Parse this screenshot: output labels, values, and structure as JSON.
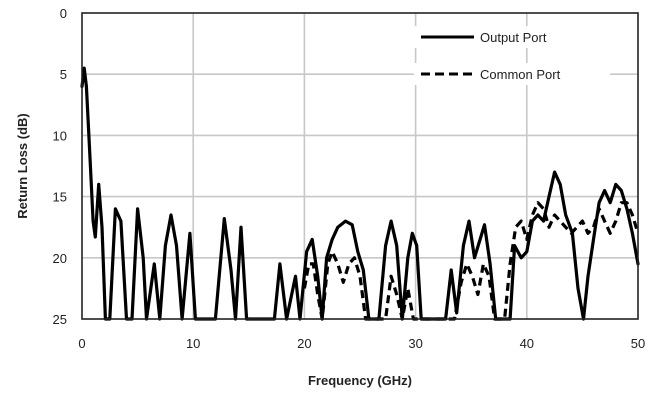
{
  "chart_data": {
    "type": "line",
    "title": "",
    "xlabel": "Frequency (GHz)",
    "ylabel": "Return Loss (dB)",
    "xlim": [
      0,
      50
    ],
    "ylim": [
      0,
      25
    ],
    "y_inverted": true,
    "x_ticks": [
      0,
      10,
      20,
      30,
      40,
      50
    ],
    "x_tick_labels": [
      "0",
      "10",
      "20",
      "30",
      "40",
      "50"
    ],
    "y_ticks": [
      0,
      5,
      10,
      15,
      20,
      25
    ],
    "y_tick_labels": [
      "0",
      "5",
      "10",
      "15",
      "20",
      "25"
    ],
    "grid": true,
    "legend_position": "top-right",
    "series": [
      {
        "name": "Output Port",
        "style": "solid",
        "color": "#000000",
        "points": [
          [
            0.0,
            6.0
          ],
          [
            0.2,
            4.5
          ],
          [
            0.4,
            6.0
          ],
          [
            0.7,
            11.5
          ],
          [
            1.0,
            17.0
          ],
          [
            1.2,
            18.3
          ],
          [
            1.5,
            14.0
          ],
          [
            1.8,
            17.5
          ],
          [
            2.1,
            25.0
          ],
          [
            2.5,
            25.0
          ],
          [
            3.0,
            16.0
          ],
          [
            3.5,
            17.0
          ],
          [
            4.0,
            25.0
          ],
          [
            4.5,
            25.0
          ],
          [
            5.0,
            16.0
          ],
          [
            5.5,
            20.0
          ],
          [
            5.8,
            25.0
          ],
          [
            6.5,
            20.5
          ],
          [
            7.0,
            25.0
          ],
          [
            7.5,
            19.0
          ],
          [
            8.0,
            16.5
          ],
          [
            8.5,
            19.0
          ],
          [
            9.0,
            25.0
          ],
          [
            9.7,
            18.0
          ],
          [
            10.2,
            25.0
          ],
          [
            12.0,
            25.0
          ],
          [
            12.8,
            16.8
          ],
          [
            13.4,
            21.0
          ],
          [
            13.8,
            25.0
          ],
          [
            14.3,
            17.5
          ],
          [
            14.8,
            25.0
          ],
          [
            17.3,
            25.0
          ],
          [
            17.8,
            20.5
          ],
          [
            18.4,
            25.0
          ],
          [
            19.2,
            21.5
          ],
          [
            19.6,
            25.0
          ],
          [
            20.2,
            19.5
          ],
          [
            20.7,
            18.5
          ],
          [
            21.2,
            21.5
          ],
          [
            21.6,
            25.0
          ],
          [
            22.0,
            20.0
          ],
          [
            22.5,
            18.5
          ],
          [
            23.0,
            17.5
          ],
          [
            23.7,
            17.0
          ],
          [
            24.3,
            17.3
          ],
          [
            24.8,
            19.5
          ],
          [
            25.3,
            21.0
          ],
          [
            25.8,
            25.0
          ],
          [
            26.7,
            25.0
          ],
          [
            27.3,
            19.0
          ],
          [
            27.8,
            17.0
          ],
          [
            28.3,
            19.0
          ],
          [
            28.8,
            25.0
          ],
          [
            29.3,
            20.0
          ],
          [
            29.7,
            18.0
          ],
          [
            30.1,
            19.0
          ],
          [
            30.5,
            25.0
          ],
          [
            32.7,
            25.0
          ],
          [
            33.2,
            21.0
          ],
          [
            33.7,
            24.5
          ],
          [
            34.3,
            19.0
          ],
          [
            34.8,
            17.0
          ],
          [
            35.3,
            20.0
          ],
          [
            35.8,
            18.5
          ],
          [
            36.2,
            17.3
          ],
          [
            36.7,
            20.5
          ],
          [
            37.2,
            25.0
          ],
          [
            38.5,
            25.0
          ],
          [
            38.9,
            19.0
          ],
          [
            39.5,
            20.0
          ],
          [
            40.0,
            19.5
          ],
          [
            40.5,
            17.0
          ],
          [
            41.0,
            16.5
          ],
          [
            41.5,
            17.0
          ],
          [
            42.0,
            15.0
          ],
          [
            42.5,
            13.0
          ],
          [
            43.0,
            14.0
          ],
          [
            43.5,
            16.5
          ],
          [
            44.1,
            18.0
          ],
          [
            44.6,
            22.5
          ],
          [
            45.1,
            25.0
          ],
          [
            45.5,
            21.5
          ],
          [
            46.0,
            18.5
          ],
          [
            46.5,
            15.5
          ],
          [
            47.0,
            14.5
          ],
          [
            47.5,
            15.5
          ],
          [
            48.0,
            14.0
          ],
          [
            48.5,
            14.5
          ],
          [
            49.0,
            16.0
          ],
          [
            49.5,
            18.0
          ],
          [
            50.0,
            20.5
          ]
        ]
      },
      {
        "name": "Common Port",
        "style": "dashed",
        "color": "#000000",
        "points": [
          [
            20.0,
            22.5
          ],
          [
            20.4,
            20.5
          ],
          [
            20.8,
            20.5
          ],
          [
            21.2,
            23.0
          ],
          [
            21.6,
            25.0
          ],
          [
            22.1,
            20.5
          ],
          [
            22.5,
            19.5
          ],
          [
            23.0,
            20.5
          ],
          [
            23.5,
            22.0
          ],
          [
            24.0,
            20.5
          ],
          [
            24.5,
            20.0
          ],
          [
            25.0,
            21.5
          ],
          [
            25.5,
            25.0
          ],
          [
            27.3,
            25.0
          ],
          [
            27.8,
            21.5
          ],
          [
            28.3,
            23.0
          ],
          [
            28.8,
            25.0
          ],
          [
            29.3,
            22.5
          ],
          [
            29.8,
            25.0
          ],
          [
            33.5,
            25.0
          ],
          [
            34.1,
            22.0
          ],
          [
            34.6,
            20.5
          ],
          [
            35.1,
            21.5
          ],
          [
            35.6,
            23.0
          ],
          [
            36.1,
            20.5
          ],
          [
            36.6,
            21.5
          ],
          [
            37.1,
            25.0
          ],
          [
            38.0,
            25.0
          ],
          [
            38.5,
            20.5
          ],
          [
            39.0,
            17.5
          ],
          [
            39.5,
            17.0
          ],
          [
            40.0,
            18.5
          ],
          [
            40.5,
            16.5
          ],
          [
            41.0,
            15.5
          ],
          [
            41.5,
            16.0
          ],
          [
            42.0,
            17.5
          ],
          [
            42.5,
            16.5
          ],
          [
            43.0,
            17.0
          ],
          [
            43.5,
            17.5
          ],
          [
            44.0,
            18.0
          ],
          [
            44.5,
            17.5
          ],
          [
            45.0,
            17.0
          ],
          [
            45.5,
            18.0
          ],
          [
            46.0,
            17.5
          ],
          [
            46.5,
            16.0
          ],
          [
            47.0,
            17.0
          ],
          [
            47.5,
            18.0
          ],
          [
            48.0,
            17.0
          ],
          [
            48.5,
            15.5
          ],
          [
            49.0,
            15.5
          ],
          [
            49.5,
            16.5
          ],
          [
            50.0,
            18.0
          ]
        ]
      }
    ]
  }
}
